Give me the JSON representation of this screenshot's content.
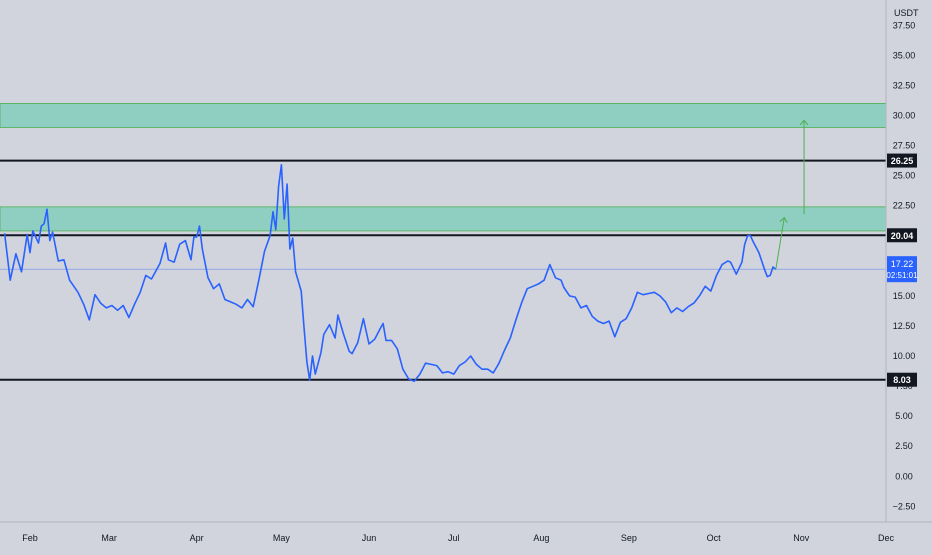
{
  "chart_data": {
    "type": "line",
    "y_unit": "USDT",
    "ylim": [
      -3.8,
      39.6
    ],
    "y_ticks": [
      "37.50",
      "35.00",
      "32.50",
      "30.00",
      "27.50",
      "25.00",
      "22.50",
      "20.00",
      "17.50",
      "15.00",
      "12.50",
      "10.00",
      "7.50",
      "5.00",
      "2.50",
      "0.00",
      "−2.50"
    ],
    "x_ticks": [
      {
        "label": "Feb",
        "day": 0
      },
      {
        "label": "Mar",
        "day": 28
      },
      {
        "label": "Apr",
        "day": 59
      },
      {
        "label": "May",
        "day": 89
      },
      {
        "label": "Jun",
        "day": 120
      },
      {
        "label": "Jul",
        "day": 150
      },
      {
        "label": "Aug",
        "day": 181
      },
      {
        "label": "Sep",
        "day": 212
      },
      {
        "label": "Oct",
        "day": 242
      },
      {
        "label": "Nov",
        "day": 273
      },
      {
        "label": "Dec",
        "day": 303
      }
    ],
    "series": [
      {
        "points": [
          [
            -9,
            20.2
          ],
          [
            -7,
            16.3
          ],
          [
            -5,
            18.5
          ],
          [
            -3,
            17.0
          ],
          [
            -1,
            20.1
          ],
          [
            0,
            18.6
          ],
          [
            1,
            20.4
          ],
          [
            3,
            19.4
          ],
          [
            4,
            20.8
          ],
          [
            5,
            21.0
          ],
          [
            6,
            22.2
          ],
          [
            7,
            19.6
          ],
          [
            8,
            20.3
          ],
          [
            10,
            17.9
          ],
          [
            12,
            18.0
          ],
          [
            14,
            16.3
          ],
          [
            17,
            15.3
          ],
          [
            19,
            14.3
          ],
          [
            21,
            13.0
          ],
          [
            23,
            15.1
          ],
          [
            25,
            14.4
          ],
          [
            27,
            14.0
          ],
          [
            29,
            14.2
          ],
          [
            31,
            13.8
          ],
          [
            33,
            14.2
          ],
          [
            35,
            13.2
          ],
          [
            37,
            14.3
          ],
          [
            39,
            15.3
          ],
          [
            41,
            16.7
          ],
          [
            43,
            16.4
          ],
          [
            46,
            17.7
          ],
          [
            48,
            19.4
          ],
          [
            49,
            18.0
          ],
          [
            51,
            17.8
          ],
          [
            53,
            19.3
          ],
          [
            55,
            19.6
          ],
          [
            57,
            18.0
          ],
          [
            58,
            19.9
          ],
          [
            59,
            19.9
          ],
          [
            60,
            20.8
          ],
          [
            61,
            18.9
          ],
          [
            63,
            16.5
          ],
          [
            65,
            15.6
          ],
          [
            67,
            16.0
          ],
          [
            69,
            14.7
          ],
          [
            71,
            14.5
          ],
          [
            73,
            14.3
          ],
          [
            75,
            14.0
          ],
          [
            77,
            14.7
          ],
          [
            79,
            14.1
          ],
          [
            81,
            16.3
          ],
          [
            83,
            18.7
          ],
          [
            85,
            20.0
          ],
          [
            86,
            22.0
          ],
          [
            87,
            20.5
          ],
          [
            88,
            24.1
          ],
          [
            89,
            25.9
          ],
          [
            90,
            21.4
          ],
          [
            91,
            24.3
          ],
          [
            92,
            18.9
          ],
          [
            93,
            19.8
          ],
          [
            94,
            17.0
          ],
          [
            96,
            15.4
          ],
          [
            97,
            12.4
          ],
          [
            98,
            9.5
          ],
          [
            99,
            8.0
          ],
          [
            100,
            10.0
          ],
          [
            101,
            8.5
          ],
          [
            103,
            10.3
          ],
          [
            104,
            11.8
          ],
          [
            106,
            12.6
          ],
          [
            108,
            11.5
          ],
          [
            109,
            13.4
          ],
          [
            111,
            11.8
          ],
          [
            113,
            10.4
          ],
          [
            114,
            10.2
          ],
          [
            116,
            11.1
          ],
          [
            118,
            13.1
          ],
          [
            120,
            11.0
          ],
          [
            122,
            11.4
          ],
          [
            124,
            12.3
          ],
          [
            125,
            12.7
          ],
          [
            126,
            11.3
          ],
          [
            128,
            11.3
          ],
          [
            130,
            10.6
          ],
          [
            132,
            8.9
          ],
          [
            134,
            8.1
          ],
          [
            136,
            7.9
          ],
          [
            138,
            8.5
          ],
          [
            140,
            9.4
          ],
          [
            142,
            9.3
          ],
          [
            144,
            9.2
          ],
          [
            146,
            8.6
          ],
          [
            148,
            8.7
          ],
          [
            150,
            8.5
          ],
          [
            152,
            9.2
          ],
          [
            154,
            9.5
          ],
          [
            156,
            10.0
          ],
          [
            158,
            9.3
          ],
          [
            160,
            8.9
          ],
          [
            162,
            8.9
          ],
          [
            164,
            8.6
          ],
          [
            166,
            9.4
          ],
          [
            168,
            10.5
          ],
          [
            170,
            11.5
          ],
          [
            172,
            13.0
          ],
          [
            174,
            14.4
          ],
          [
            176,
            15.6
          ],
          [
            178,
            15.8
          ],
          [
            180,
            16.0
          ],
          [
            182,
            16.3
          ],
          [
            184,
            17.6
          ],
          [
            186,
            16.5
          ],
          [
            188,
            16.3
          ],
          [
            189,
            15.7
          ],
          [
            191,
            15.0
          ],
          [
            193,
            14.9
          ],
          [
            195,
            14.0
          ],
          [
            197,
            14.2
          ],
          [
            199,
            13.3
          ],
          [
            201,
            12.9
          ],
          [
            203,
            12.7
          ],
          [
            205,
            12.9
          ],
          [
            207,
            11.6
          ],
          [
            209,
            12.8
          ],
          [
            211,
            13.1
          ],
          [
            213,
            14.0
          ],
          [
            215,
            15.3
          ],
          [
            217,
            15.1
          ],
          [
            219,
            15.2
          ],
          [
            221,
            15.3
          ],
          [
            223,
            15.0
          ],
          [
            225,
            14.5
          ],
          [
            227,
            13.6
          ],
          [
            229,
            14.0
          ],
          [
            231,
            13.7
          ],
          [
            233,
            14.1
          ],
          [
            235,
            14.4
          ],
          [
            237,
            15.0
          ],
          [
            239,
            15.8
          ],
          [
            241,
            15.4
          ],
          [
            243,
            16.7
          ],
          [
            245,
            17.6
          ],
          [
            247,
            17.9
          ],
          [
            248,
            17.8
          ],
          [
            250,
            16.8
          ],
          [
            251,
            17.3
          ],
          [
            252,
            17.8
          ],
          [
            253,
            19.3
          ],
          [
            254,
            20.0
          ],
          [
            255,
            20.0
          ],
          [
            256,
            19.5
          ],
          [
            258,
            18.6
          ],
          [
            260,
            17.2
          ],
          [
            261,
            16.6
          ],
          [
            262,
            16.7
          ],
          [
            263,
            17.4
          ],
          [
            264,
            17.2
          ]
        ]
      }
    ],
    "horizontal_lines": [
      {
        "value": 26.25,
        "label": "26.25",
        "color": "#131722"
      },
      {
        "value": 20.04,
        "label": "20.04",
        "color": "#131722"
      },
      {
        "value": 8.03,
        "label": "8.03",
        "color": "#131722"
      }
    ],
    "zones": [
      {
        "from": 29.0,
        "to": 31.0,
        "color": "#8fcfc2"
      },
      {
        "from": 20.4,
        "to": 22.4,
        "color": "#8fcfc2"
      }
    ],
    "projection_arrows": [
      {
        "from": [
          264,
          17.2
        ],
        "to": [
          267,
          21.5
        ]
      },
      {
        "from": [
          274,
          21.8
        ],
        "to": [
          274,
          29.6
        ]
      }
    ],
    "last_price": {
      "value": 17.22,
      "label": "17.22",
      "countdown": "02:51:01",
      "color": "#2962ff"
    },
    "colors": {
      "line": "#2962ff",
      "background": "#d1d4dc",
      "zone_border": "#4caf50",
      "arrow": "#4caf50",
      "axis_text": "#131722"
    }
  }
}
